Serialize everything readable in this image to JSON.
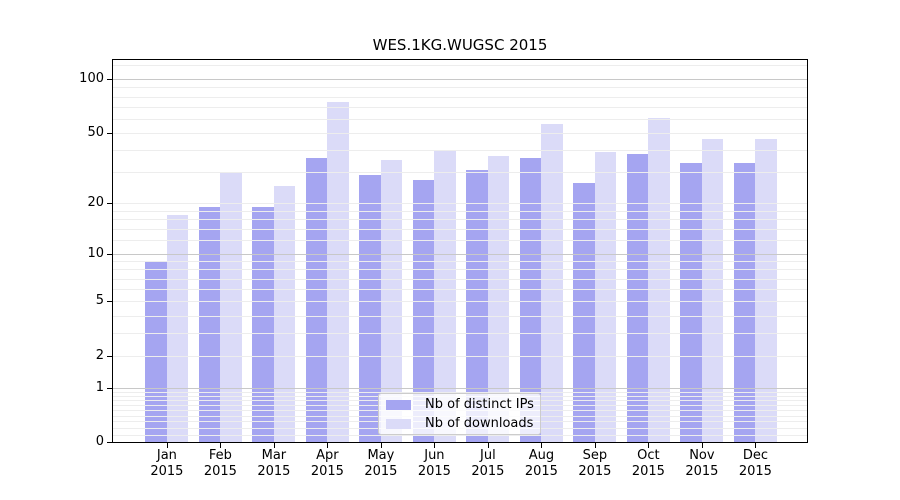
{
  "title": "WES.1KG.WUGSC 2015",
  "colors": {
    "ips_bar": "#a5a5f1",
    "downloads_bar": "#dbdbf8",
    "grid_minor": "#ededed",
    "grid_major": "#c8c8c8",
    "axis": "#000000",
    "background": "#ffffff",
    "legend_border": "#cccccc"
  },
  "legend": {
    "items": [
      {
        "label": "Nb of distinct IPs",
        "color": "#a5a5f1"
      },
      {
        "label": "Nb of downloads",
        "color": "#dbdbf8"
      }
    ]
  },
  "chart_data": {
    "type": "bar",
    "title": "WES.1KG.WUGSC 2015",
    "categories": [
      "Jan 2015",
      "Feb 2015",
      "Mar 2015",
      "Apr 2015",
      "May 2015",
      "Jun 2015",
      "Jul 2015",
      "Aug 2015",
      "Sep 2015",
      "Oct 2015",
      "Nov 2015",
      "Dec 2015"
    ],
    "series": [
      {
        "name": "Nb of distinct IPs",
        "color": "#a5a5f1",
        "values": [
          9,
          19,
          19,
          36,
          29,
          27,
          31,
          36,
          26,
          38,
          34,
          34
        ]
      },
      {
        "name": "Nb of downloads",
        "color": "#dbdbf8",
        "values": [
          17,
          30,
          25,
          75,
          35,
          40,
          37,
          56,
          39,
          61,
          46,
          46
        ]
      }
    ],
    "xlabel": "",
    "ylabel": "",
    "yscale": "log1p",
    "yticks": [
      0,
      1,
      2,
      5,
      10,
      20,
      50,
      100
    ],
    "minor_gridlines": [
      0.1,
      0.2,
      0.3,
      0.4,
      0.5,
      0.6,
      0.7,
      0.8,
      0.9,
      2,
      3,
      4,
      5,
      6,
      7,
      8,
      9,
      12,
      14,
      16,
      18,
      20,
      30,
      40,
      50,
      60,
      70,
      80,
      90,
      120
    ],
    "major_gridlines": [
      1,
      10,
      100
    ],
    "ylim": [
      0,
      128
    ],
    "grid": "horizontal",
    "legend_position": "lower center"
  }
}
